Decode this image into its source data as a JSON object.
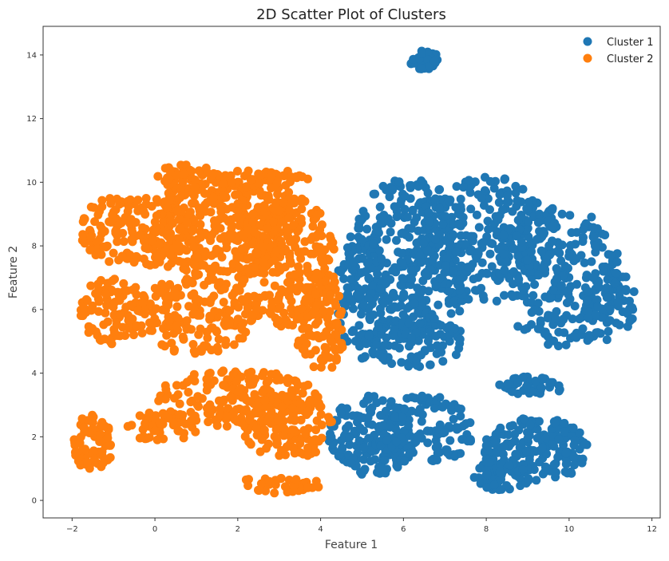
{
  "chart_data": {
    "type": "scatter",
    "title": "2D Scatter Plot of Clusters",
    "xlabel": "Feature 1",
    "ylabel": "Feature 2",
    "xlim": [
      -2.7,
      12.2
    ],
    "ylim": [
      -0.55,
      14.9
    ],
    "xticks": [
      -2,
      0,
      2,
      4,
      6,
      8,
      10,
      12
    ],
    "yticks": [
      0,
      2,
      4,
      6,
      8,
      10,
      12,
      14
    ],
    "grid": false,
    "legend_position": "top-right",
    "series": [
      {
        "name": "Cluster 1",
        "color": "#1f77b4",
        "regions": [
          {
            "cx": 6.2,
            "cy": 7.6,
            "rx": 1.5,
            "ry": 2.6,
            "n": 320
          },
          {
            "cx": 8.0,
            "cy": 8.2,
            "rx": 1.8,
            "ry": 2.0,
            "n": 300
          },
          {
            "cx": 9.8,
            "cy": 7.0,
            "rx": 1.5,
            "ry": 2.2,
            "n": 220
          },
          {
            "cx": 11.0,
            "cy": 6.2,
            "rx": 0.6,
            "ry": 1.2,
            "n": 70
          },
          {
            "cx": 5.0,
            "cy": 6.5,
            "rx": 0.6,
            "ry": 2.2,
            "n": 120
          },
          {
            "cx": 6.3,
            "cy": 5.0,
            "rx": 1.2,
            "ry": 0.8,
            "n": 90
          },
          {
            "cx": 5.2,
            "cy": 2.0,
            "rx": 1.0,
            "ry": 1.3,
            "n": 160
          },
          {
            "cx": 6.5,
            "cy": 2.2,
            "rx": 1.2,
            "ry": 1.1,
            "n": 140
          },
          {
            "cx": 9.2,
            "cy": 1.6,
            "rx": 1.3,
            "ry": 1.0,
            "n": 170
          },
          {
            "cx": 8.4,
            "cy": 0.8,
            "rx": 0.7,
            "ry": 0.5,
            "n": 60
          },
          {
            "cx": 9.1,
            "cy": 3.6,
            "rx": 0.8,
            "ry": 0.3,
            "n": 40
          },
          {
            "cx": 6.5,
            "cy": 13.85,
            "rx": 0.35,
            "ry": 0.3,
            "n": 40
          }
        ]
      },
      {
        "name": "Cluster 2",
        "color": "#ff7f0e",
        "regions": [
          {
            "cx": 1.5,
            "cy": 8.5,
            "rx": 1.8,
            "ry": 1.6,
            "n": 360
          },
          {
            "cx": 3.2,
            "cy": 7.5,
            "rx": 1.2,
            "ry": 2.2,
            "n": 260
          },
          {
            "cx": -0.5,
            "cy": 8.5,
            "rx": 1.3,
            "ry": 1.2,
            "n": 150
          },
          {
            "cx": -1.0,
            "cy": 6.0,
            "rx": 0.8,
            "ry": 1.1,
            "n": 100
          },
          {
            "cx": 1.0,
            "cy": 5.8,
            "rx": 1.5,
            "ry": 1.2,
            "n": 170
          },
          {
            "cx": 4.0,
            "cy": 5.5,
            "rx": 0.6,
            "ry": 1.5,
            "n": 110
          },
          {
            "cx": 2.0,
            "cy": 3.2,
            "rx": 2.0,
            "ry": 0.9,
            "n": 180
          },
          {
            "cx": 3.2,
            "cy": 2.3,
            "rx": 1.1,
            "ry": 1.0,
            "n": 120
          },
          {
            "cx": -1.5,
            "cy": 1.8,
            "rx": 0.5,
            "ry": 0.9,
            "n": 70
          },
          {
            "cx": 0.2,
            "cy": 2.3,
            "rx": 0.9,
            "ry": 0.5,
            "n": 60
          },
          {
            "cx": 3.0,
            "cy": 0.5,
            "rx": 1.0,
            "ry": 0.3,
            "n": 40
          },
          {
            "cx": 2.6,
            "cy": 10.1,
            "rx": 1.2,
            "ry": 0.3,
            "n": 60
          },
          {
            "cx": 0.8,
            "cy": 10.2,
            "rx": 0.8,
            "ry": 0.4,
            "n": 40
          }
        ]
      }
    ]
  }
}
